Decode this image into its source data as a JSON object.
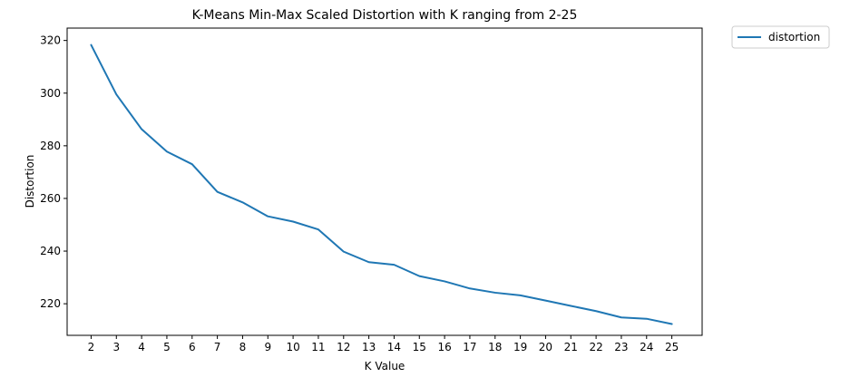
{
  "chart_data": {
    "type": "line",
    "title": "K-Means Min-Max Scaled Distortion with K ranging from 2-25",
    "xlabel": "K Value",
    "ylabel": "Distortion",
    "x": [
      2,
      3,
      4,
      5,
      6,
      7,
      8,
      9,
      10,
      11,
      12,
      13,
      14,
      15,
      16,
      17,
      18,
      19,
      20,
      21,
      22,
      23,
      24,
      25
    ],
    "x_tick_labels": [
      "2",
      "3",
      "4",
      "5",
      "6",
      "7",
      "8",
      "9",
      "10",
      "11",
      "12",
      "13",
      "14",
      "15",
      "16",
      "17",
      "18",
      "19",
      "20",
      "21",
      "22",
      "23",
      "24",
      "25"
    ],
    "y_ticks": [
      220,
      240,
      260,
      280,
      300,
      320
    ],
    "y_tick_labels": [
      "220",
      "240",
      "260",
      "280",
      "300",
      "320"
    ],
    "xlim": [
      1.05,
      26.2
    ],
    "ylim": [
      208,
      324.7
    ],
    "grid": false,
    "legend_position": "outside-top-right",
    "series": [
      {
        "name": "distortion",
        "color": "#1f77b4",
        "values": [
          318.3,
          299.5,
          286.3,
          277.8,
          273.0,
          262.5,
          258.5,
          253.2,
          251.2,
          248.2,
          239.8,
          235.8,
          234.8,
          230.5,
          228.5,
          225.8,
          224.2,
          223.2,
          221.2,
          219.2,
          217.2,
          214.8,
          214.3,
          212.3
        ]
      }
    ]
  }
}
